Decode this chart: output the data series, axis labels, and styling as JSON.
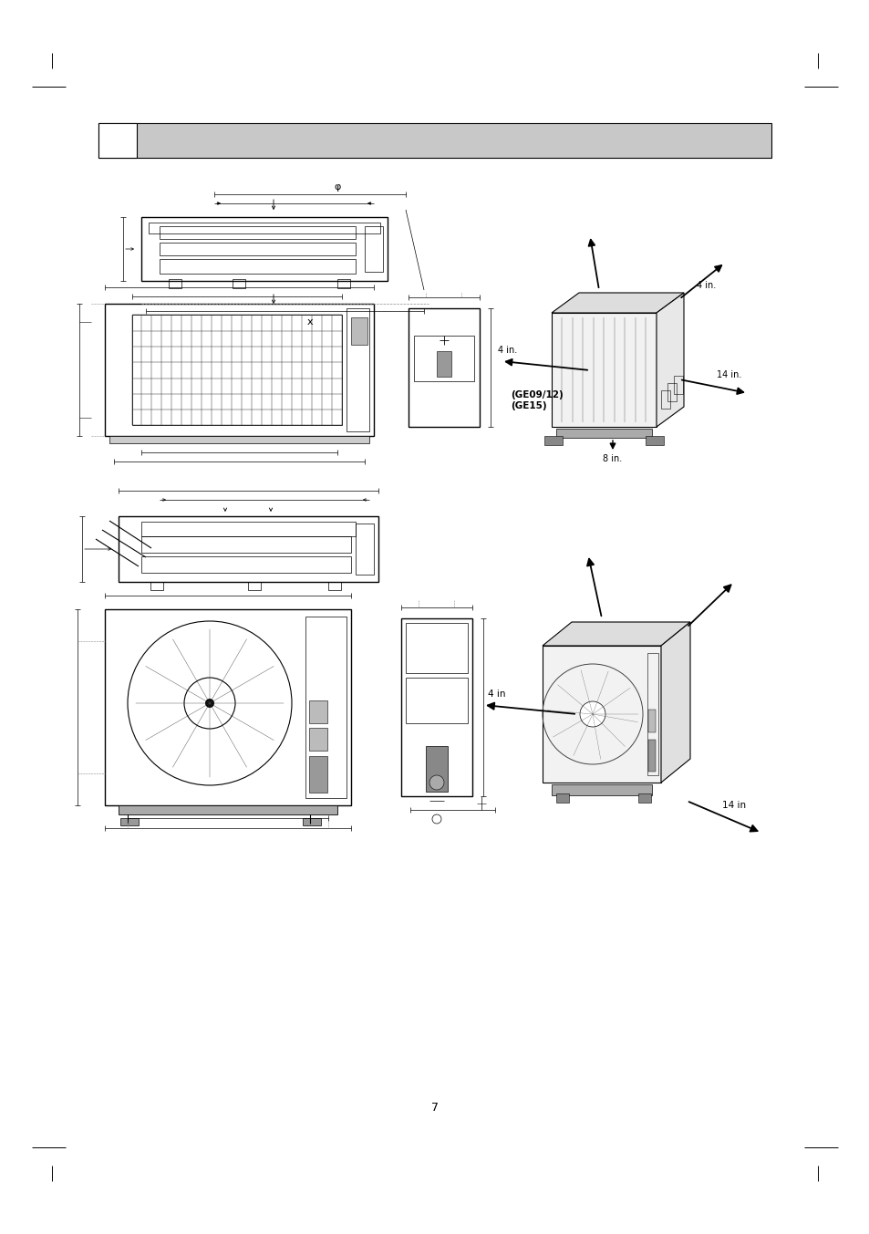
{
  "page_bg": "#ffffff",
  "header_bar_color": "#c8c8c8",
  "page_number": "7",
  "label_ge0912": "(GE09/12)",
  "label_ge15": "(GE15)",
  "label_4in_a": "4 in.",
  "label_4in_b": "4 in.",
  "label_8in": "8 in.",
  "label_14in_a": "14 in.",
  "label_4in_c": "4 in",
  "label_14in_b": "14 in",
  "label_x": "x",
  "label_phi": "φ"
}
